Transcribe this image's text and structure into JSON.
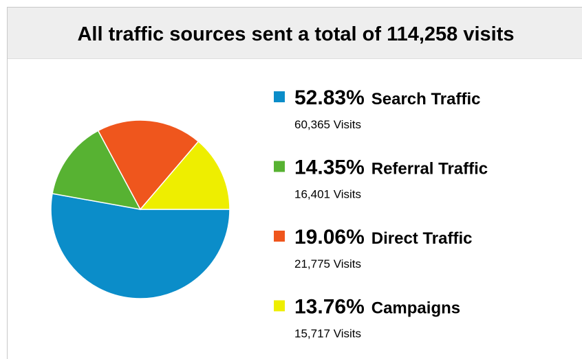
{
  "chart_data": {
    "type": "pie",
    "title": "All traffic sources sent a total of 114,258 visits",
    "categories": [
      "Search Traffic",
      "Referral Traffic",
      "Direct Traffic",
      "Campaigns"
    ],
    "values": [
      52.83,
      14.35,
      19.06,
      13.76
    ],
    "value_labels": [
      "52.83%",
      "14.35%",
      "19.06%",
      "13.76%"
    ],
    "visits_labels": [
      "60,365 Visits",
      "16,401 Visits",
      "21,775 Visits",
      "15,717 Visits"
    ],
    "colors": [
      "#0b8dc9",
      "#57b232",
      "#ef561d",
      "#eeee00"
    ],
    "legend": "right"
  }
}
